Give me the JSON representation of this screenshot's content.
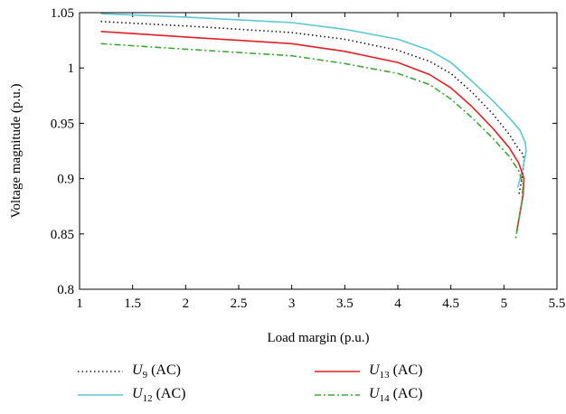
{
  "chart_data": {
    "type": "line",
    "xlabel": "Load margin (p.u.)",
    "ylabel": "Voltage magnitude (p.u.)",
    "xlim": [
      1,
      5.5
    ],
    "ylim": [
      0.8,
      1.05
    ],
    "x_ticks": [
      "1",
      "1.5",
      "2",
      "2.5",
      "3",
      "3.5",
      "4",
      "4.5",
      "5",
      "5.5"
    ],
    "y_ticks": [
      "0.8",
      "0.85",
      "0.9",
      "0.95",
      "1",
      "1.05"
    ],
    "grid": false,
    "legend_position": "bottom",
    "series": [
      {
        "name": "U9 (AC)",
        "symbol": "U",
        "sub": "9",
        "suffix": "(AC)",
        "color": "#1a1a2e",
        "dash": "1.5,3",
        "points": [
          [
            1.2,
            1.042
          ],
          [
            2.0,
            1.038
          ],
          [
            3.0,
            1.032
          ],
          [
            3.5,
            1.026
          ],
          [
            4.0,
            1.016
          ],
          [
            4.3,
            1.006
          ],
          [
            4.5,
            0.995
          ],
          [
            4.7,
            0.978
          ],
          [
            4.9,
            0.958
          ],
          [
            5.05,
            0.94
          ],
          [
            5.13,
            0.928
          ],
          [
            5.18,
            0.922
          ],
          [
            5.19,
            0.915
          ],
          [
            5.17,
            0.9
          ],
          [
            5.14,
            0.885
          ]
        ]
      },
      {
        "name": "U12 (AC)",
        "symbol": "U",
        "sub": "12",
        "suffix": "(AC)",
        "color": "#5bc8d4",
        "dash": "",
        "points": [
          [
            1.2,
            1.049
          ],
          [
            2.0,
            1.046
          ],
          [
            3.0,
            1.041
          ],
          [
            3.5,
            1.035
          ],
          [
            4.0,
            1.026
          ],
          [
            4.3,
            1.016
          ],
          [
            4.5,
            1.005
          ],
          [
            4.7,
            0.988
          ],
          [
            4.9,
            0.97
          ],
          [
            5.05,
            0.955
          ],
          [
            5.15,
            0.944
          ],
          [
            5.2,
            0.933
          ],
          [
            5.21,
            0.925
          ],
          [
            5.18,
            0.91
          ],
          [
            5.13,
            0.892
          ]
        ]
      },
      {
        "name": "U13 (AC)",
        "symbol": "U",
        "sub": "13",
        "suffix": "(AC)",
        "color": "#e31e24",
        "dash": "",
        "points": [
          [
            1.2,
            1.033
          ],
          [
            2.0,
            1.028
          ],
          [
            3.0,
            1.022
          ],
          [
            3.5,
            1.015
          ],
          [
            4.0,
            1.005
          ],
          [
            4.3,
            0.994
          ],
          [
            4.5,
            0.982
          ],
          [
            4.7,
            0.965
          ],
          [
            4.9,
            0.945
          ],
          [
            5.05,
            0.928
          ],
          [
            5.14,
            0.914
          ],
          [
            5.19,
            0.9
          ],
          [
            5.18,
            0.885
          ],
          [
            5.15,
            0.868
          ],
          [
            5.12,
            0.852
          ]
        ]
      },
      {
        "name": "U14 (AC)",
        "symbol": "U",
        "sub": "14",
        "suffix": "(AC)",
        "color": "#3aaa35",
        "dash": "7,3,2,3",
        "points": [
          [
            1.2,
            1.022
          ],
          [
            2.0,
            1.017
          ],
          [
            3.0,
            1.011
          ],
          [
            3.5,
            1.004
          ],
          [
            4.0,
            0.995
          ],
          [
            4.3,
            0.985
          ],
          [
            4.5,
            0.972
          ],
          [
            4.7,
            0.955
          ],
          [
            4.9,
            0.936
          ],
          [
            5.05,
            0.92
          ],
          [
            5.14,
            0.907
          ],
          [
            5.18,
            0.895
          ],
          [
            5.17,
            0.88
          ],
          [
            5.14,
            0.862
          ],
          [
            5.11,
            0.845
          ]
        ]
      }
    ]
  }
}
